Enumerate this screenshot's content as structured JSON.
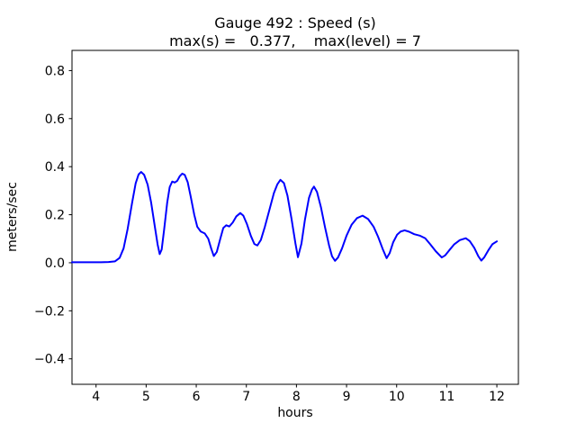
{
  "figure": {
    "title_line1": "Gauge 492 : Speed (s)",
    "title_line2": "max(s) =   0.377,    max(level) = 7",
    "xlabel": "hours",
    "ylabel": "meters/sec",
    "background_color": "#ffffff",
    "frame_color": "#000000",
    "line_color": "#0000ff"
  },
  "chart_data": {
    "type": "line",
    "title": "Gauge 492 : Speed (s)\nmax(s) =   0.377,    max(level) = 7",
    "xlabel": "hours",
    "ylabel": "meters/sec",
    "xlim": [
      3.52,
      12.43
    ],
    "ylim": [
      -0.506,
      0.884
    ],
    "xticks": [
      4,
      5,
      6,
      7,
      8,
      9,
      10,
      11,
      12
    ],
    "xtick_labels": [
      "4",
      "5",
      "6",
      "7",
      "8",
      "9",
      "10",
      "11",
      "12"
    ],
    "yticks": [
      -0.4,
      -0.2,
      0.0,
      0.2,
      0.4,
      0.6,
      0.8
    ],
    "ytick_labels": [
      "−0.4",
      "−0.2",
      "0.0",
      "0.2",
      "0.4",
      "0.6",
      "0.8"
    ],
    "grid": false,
    "legend": null,
    "annotations": {
      "max_s": 0.377,
      "max_level": 7
    },
    "series": [
      {
        "name": "speed",
        "color": "#0000ff",
        "points": [
          [
            3.52,
            0.002
          ],
          [
            3.7,
            0.002
          ],
          [
            3.9,
            0.002
          ],
          [
            4.1,
            0.002
          ],
          [
            4.25,
            0.003
          ],
          [
            4.38,
            0.006
          ],
          [
            4.47,
            0.02
          ],
          [
            4.55,
            0.06
          ],
          [
            4.63,
            0.14
          ],
          [
            4.72,
            0.25
          ],
          [
            4.79,
            0.33
          ],
          [
            4.85,
            0.368
          ],
          [
            4.9,
            0.378
          ],
          [
            4.96,
            0.366
          ],
          [
            5.03,
            0.325
          ],
          [
            5.1,
            0.25
          ],
          [
            5.17,
            0.155
          ],
          [
            5.23,
            0.075
          ],
          [
            5.27,
            0.036
          ],
          [
            5.31,
            0.055
          ],
          [
            5.36,
            0.14
          ],
          [
            5.42,
            0.25
          ],
          [
            5.47,
            0.315
          ],
          [
            5.52,
            0.338
          ],
          [
            5.57,
            0.334
          ],
          [
            5.62,
            0.341
          ],
          [
            5.67,
            0.36
          ],
          [
            5.72,
            0.371
          ],
          [
            5.77,
            0.366
          ],
          [
            5.83,
            0.335
          ],
          [
            5.89,
            0.275
          ],
          [
            5.96,
            0.2
          ],
          [
            6.02,
            0.15
          ],
          [
            6.09,
            0.13
          ],
          [
            6.17,
            0.122
          ],
          [
            6.24,
            0.1
          ],
          [
            6.3,
            0.058
          ],
          [
            6.35,
            0.028
          ],
          [
            6.41,
            0.045
          ],
          [
            6.48,
            0.1
          ],
          [
            6.54,
            0.145
          ],
          [
            6.6,
            0.156
          ],
          [
            6.66,
            0.151
          ],
          [
            6.73,
            0.168
          ],
          [
            6.8,
            0.193
          ],
          [
            6.88,
            0.207
          ],
          [
            6.94,
            0.196
          ],
          [
            7.01,
            0.162
          ],
          [
            7.09,
            0.112
          ],
          [
            7.16,
            0.078
          ],
          [
            7.22,
            0.072
          ],
          [
            7.29,
            0.095
          ],
          [
            7.37,
            0.15
          ],
          [
            7.46,
            0.22
          ],
          [
            7.55,
            0.29
          ],
          [
            7.62,
            0.327
          ],
          [
            7.68,
            0.345
          ],
          [
            7.75,
            0.332
          ],
          [
            7.82,
            0.28
          ],
          [
            7.9,
            0.185
          ],
          [
            7.98,
            0.08
          ],
          [
            8.03,
            0.023
          ],
          [
            8.1,
            0.08
          ],
          [
            8.17,
            0.18
          ],
          [
            8.25,
            0.27
          ],
          [
            8.31,
            0.305
          ],
          [
            8.35,
            0.317
          ],
          [
            8.41,
            0.295
          ],
          [
            8.49,
            0.23
          ],
          [
            8.57,
            0.148
          ],
          [
            8.65,
            0.073
          ],
          [
            8.71,
            0.027
          ],
          [
            8.77,
            0.008
          ],
          [
            8.83,
            0.022
          ],
          [
            8.91,
            0.06
          ],
          [
            9.0,
            0.113
          ],
          [
            9.1,
            0.158
          ],
          [
            9.21,
            0.186
          ],
          [
            9.32,
            0.196
          ],
          [
            9.43,
            0.182
          ],
          [
            9.54,
            0.15
          ],
          [
            9.63,
            0.108
          ],
          [
            9.72,
            0.058
          ],
          [
            9.8,
            0.019
          ],
          [
            9.86,
            0.04
          ],
          [
            9.93,
            0.085
          ],
          [
            10.01,
            0.117
          ],
          [
            10.08,
            0.13
          ],
          [
            10.16,
            0.135
          ],
          [
            10.25,
            0.129
          ],
          [
            10.35,
            0.119
          ],
          [
            10.46,
            0.113
          ],
          [
            10.57,
            0.102
          ],
          [
            10.67,
            0.077
          ],
          [
            10.78,
            0.048
          ],
          [
            10.9,
            0.022
          ],
          [
            10.97,
            0.031
          ],
          [
            11.05,
            0.052
          ],
          [
            11.15,
            0.077
          ],
          [
            11.26,
            0.094
          ],
          [
            11.38,
            0.102
          ],
          [
            11.46,
            0.09
          ],
          [
            11.55,
            0.062
          ],
          [
            11.63,
            0.027
          ],
          [
            11.69,
            0.009
          ],
          [
            11.75,
            0.023
          ],
          [
            11.83,
            0.052
          ],
          [
            11.91,
            0.077
          ],
          [
            12.0,
            0.089
          ]
        ]
      }
    ]
  }
}
